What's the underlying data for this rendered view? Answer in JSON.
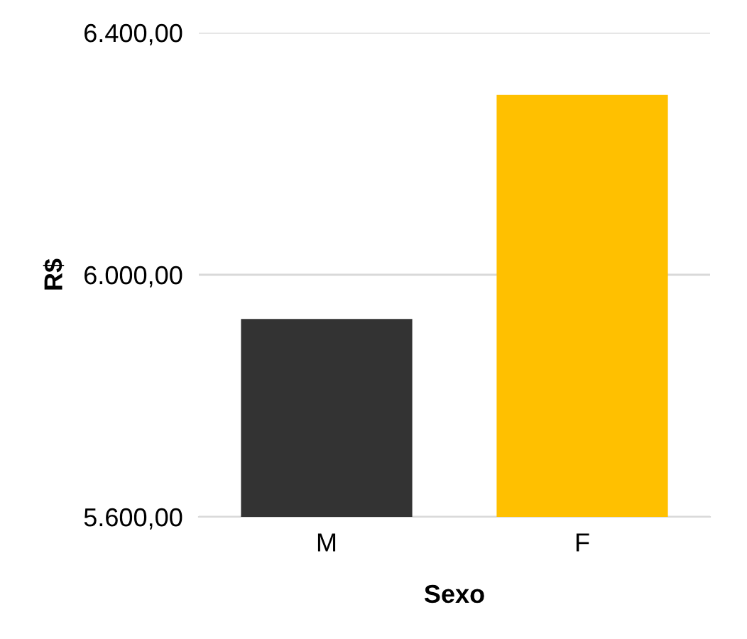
{
  "chart_data": {
    "type": "bar",
    "xlabel": "Sexo",
    "ylabel": "R$",
    "categories": [
      "M",
      "F"
    ],
    "values": [
      5927,
      6297
    ],
    "colors": [
      "#333333",
      "#ffc000"
    ],
    "ylim": [
      5600,
      6400
    ],
    "yticks": [
      {
        "value": 5600,
        "label": "5.600,00"
      },
      {
        "value": 6000,
        "label": "6.000,00"
      },
      {
        "value": 6400,
        "label": "6.400,00"
      }
    ],
    "grid": "y",
    "legend": false
  }
}
